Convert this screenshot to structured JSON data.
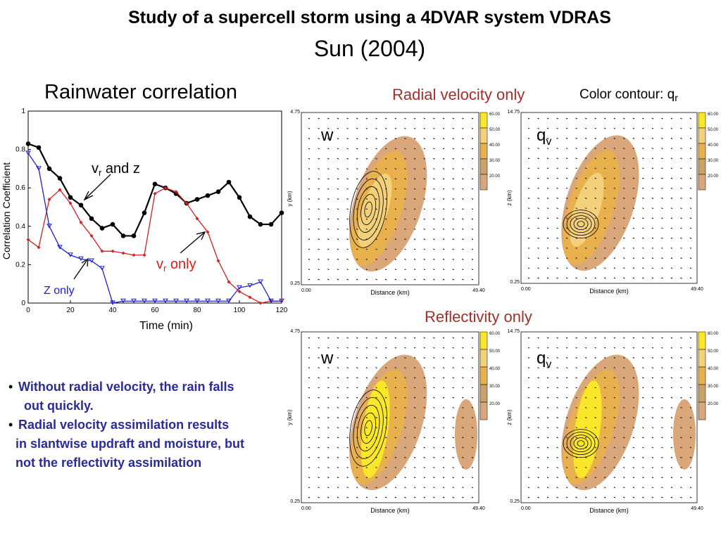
{
  "header": {
    "title": "Study of a supercell storm using a 4DVAR system VDRAS",
    "subtitle": "Sun (2004)"
  },
  "chart_data": {
    "type": "line",
    "title": "Rainwater correlation",
    "x_label": "Time (min)",
    "y_label": "Correlation Coefficient",
    "x": [
      0,
      5,
      10,
      15,
      20,
      25,
      30,
      35,
      40,
      45,
      50,
      55,
      60,
      65,
      70,
      75,
      80,
      85,
      90,
      95,
      100,
      105,
      110,
      115,
      120
    ],
    "xlim": [
      0,
      120
    ],
    "xticks": [
      0,
      20,
      40,
      60,
      80,
      100,
      120
    ],
    "ylim": [
      0,
      1
    ],
    "yticks": [
      0,
      0.2,
      0.4,
      0.6,
      0.8,
      1
    ],
    "series": [
      {
        "name": "vr and z",
        "color": "#000000",
        "marker": "circle",
        "values": [
          0.83,
          0.81,
          0.7,
          0.65,
          0.55,
          0.51,
          0.44,
          0.39,
          0.41,
          0.35,
          0.35,
          0.47,
          0.62,
          0.6,
          0.57,
          0.52,
          0.54,
          0.56,
          0.58,
          0.63,
          0.55,
          0.45,
          0.41,
          0.41,
          0.47
        ]
      },
      {
        "name": "vr only",
        "color": "#d42020",
        "marker": "diamond",
        "values": [
          0.33,
          0.29,
          0.54,
          0.59,
          0.52,
          0.42,
          0.35,
          0.27,
          0.27,
          0.26,
          0.25,
          0.25,
          0.57,
          0.6,
          0.58,
          0.52,
          0.44,
          0.37,
          0.22,
          0.11,
          0.06,
          0.03,
          0.0,
          0.01,
          0.01
        ]
      },
      {
        "name": "Z only",
        "color": "#2020d0",
        "marker": "triangle",
        "values": [
          0.78,
          0.7,
          0.4,
          0.29,
          0.25,
          0.23,
          0.22,
          0.18,
          0.0,
          0.01,
          0.01,
          0.01,
          0.01,
          0.01,
          0.01,
          0.01,
          0.01,
          0.01,
          0.01,
          0.01,
          0.08,
          0.09,
          0.11,
          0.01,
          0.01
        ]
      }
    ],
    "annotations": [
      {
        "parts": [
          "v",
          "r",
          " and z"
        ],
        "color": "#000000"
      },
      {
        "parts": [
          "v",
          "r",
          " only"
        ],
        "color": "#d42020"
      },
      {
        "parts": [
          "Z only"
        ],
        "color": "#2020d0"
      }
    ]
  },
  "headings": {
    "radial": "Radial velocity only",
    "contour": [
      "Color contour: q",
      "r"
    ],
    "reflectivity": "Reflectivity only"
  },
  "panels": [
    {
      "label": [
        "w"
      ],
      "ytop": "4.75",
      "ybottom": "0.25",
      "yaxis": "y (km)",
      "xleft": "0.00",
      "xright": "49.40",
      "xaxis": "Distance (km)",
      "colorbar": [
        "60.00",
        "50.00",
        "40.00",
        "30.00",
        "20.00"
      ]
    },
    {
      "label": [
        "q",
        "v"
      ],
      "ytop": "14.75",
      "ybottom": "0.25",
      "yaxis": "z (km)",
      "xleft": "0.00",
      "xright": "49.40",
      "xaxis": "Distance (km)",
      "colorbar": [
        "60.00",
        "50.00",
        "40.00",
        "30.00",
        "20.00"
      ]
    },
    {
      "label": [
        "w"
      ],
      "ytop": "4.75",
      "ybottom": "0.25",
      "yaxis": "y (km)",
      "xleft": "0.00",
      "xright": "49.40",
      "xaxis": "Distance (km)",
      "colorbar": [
        "60.00",
        "50.00",
        "40.00",
        "30.00",
        "20.00"
      ]
    },
    {
      "label": [
        "q",
        "v"
      ],
      "ytop": "14.75",
      "ybottom": "0.25",
      "yaxis": "z (km)",
      "xleft": "0.00",
      "xright": "49.40",
      "xaxis": "Distance (km)",
      "colorbar": [
        "60.00",
        "50.00",
        "40.00",
        "30.00",
        "20.00"
      ]
    }
  ],
  "bullets": [
    [
      "Without radial velocity, the rain falls",
      "out quickly."
    ],
    [
      "Radial velocity assimilation results",
      "in slantwise updraft and moisture, but",
      "not the reflectivity assimilation"
    ]
  ]
}
